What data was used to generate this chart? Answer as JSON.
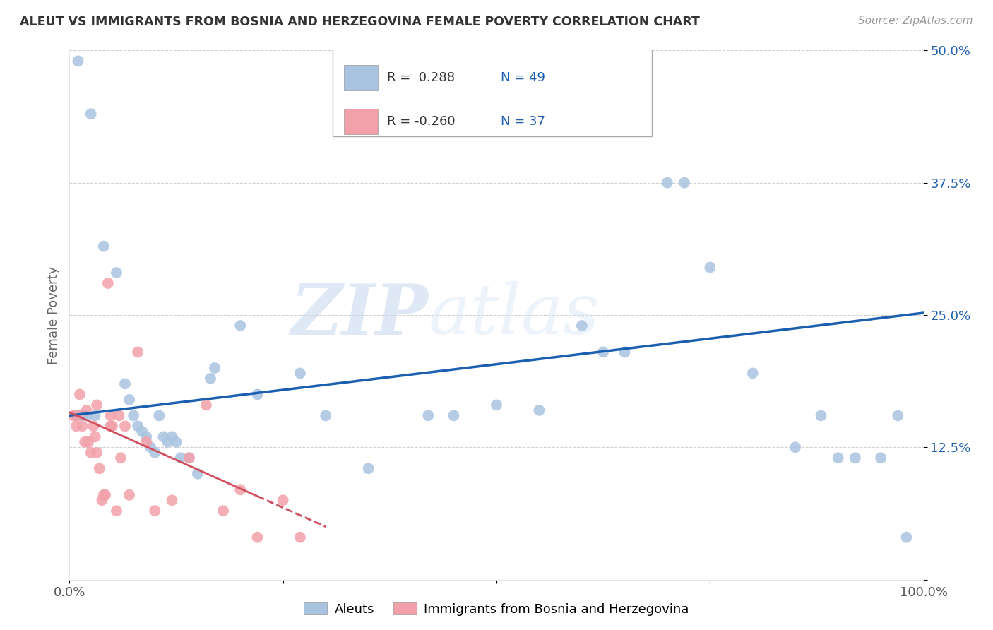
{
  "title": "ALEUT VS IMMIGRANTS FROM BOSNIA AND HERZEGOVINA FEMALE POVERTY CORRELATION CHART",
  "source": "Source: ZipAtlas.com",
  "ylabel": "Female Poverty",
  "xlim": [
    0,
    1.0
  ],
  "ylim": [
    0,
    0.5
  ],
  "yticks": [
    0.0,
    0.125,
    0.25,
    0.375,
    0.5
  ],
  "ytick_labels": [
    "",
    "12.5%",
    "25.0%",
    "37.5%",
    "50.0%"
  ],
  "xticks": [
    0.0,
    0.25,
    0.5,
    0.75,
    1.0
  ],
  "xtick_labels": [
    "0.0%",
    "",
    "",
    "",
    "100.0%"
  ],
  "blue_r": "0.288",
  "blue_n": "49",
  "pink_r": "-0.260",
  "pink_n": "37",
  "blue_color": "#a8c4e0",
  "pink_color": "#f2a0aa",
  "blue_line_color": "#1a5fb0",
  "pink_line_color": "#d05060",
  "watermark_zip": "ZIP",
  "watermark_atlas": "atlas",
  "legend_label_blue": "Aleuts",
  "legend_label_pink": "Immigrants from Bosnia and Herzegovina",
  "blue_scatter_x": [
    0.01,
    0.025,
    0.04,
    0.055,
    0.065,
    0.07,
    0.075,
    0.08,
    0.085,
    0.09,
    0.095,
    0.1,
    0.105,
    0.11,
    0.115,
    0.12,
    0.125,
    0.13,
    0.14,
    0.15,
    0.165,
    0.17,
    0.2,
    0.22,
    0.27,
    0.3,
    0.35,
    0.42,
    0.45,
    0.5,
    0.55,
    0.6,
    0.625,
    0.65,
    0.7,
    0.72,
    0.75,
    0.8,
    0.85,
    0.88,
    0.9,
    0.92,
    0.95,
    0.97,
    0.98,
    0.008,
    0.015,
    0.02,
    0.03
  ],
  "blue_scatter_y": [
    0.49,
    0.44,
    0.315,
    0.29,
    0.185,
    0.17,
    0.155,
    0.145,
    0.14,
    0.135,
    0.125,
    0.12,
    0.155,
    0.135,
    0.13,
    0.135,
    0.13,
    0.115,
    0.115,
    0.1,
    0.19,
    0.2,
    0.24,
    0.175,
    0.195,
    0.155,
    0.105,
    0.155,
    0.155,
    0.165,
    0.16,
    0.24,
    0.215,
    0.215,
    0.375,
    0.375,
    0.295,
    0.195,
    0.125,
    0.155,
    0.115,
    0.115,
    0.115,
    0.155,
    0.04,
    0.155,
    0.155,
    0.155,
    0.155
  ],
  "pink_scatter_x": [
    0.005,
    0.008,
    0.01,
    0.012,
    0.015,
    0.018,
    0.02,
    0.022,
    0.025,
    0.028,
    0.03,
    0.032,
    0.035,
    0.038,
    0.04,
    0.042,
    0.045,
    0.048,
    0.05,
    0.055,
    0.06,
    0.065,
    0.07,
    0.08,
    0.09,
    0.1,
    0.12,
    0.14,
    0.16,
    0.18,
    0.2,
    0.22,
    0.25,
    0.27,
    0.032,
    0.048,
    0.058
  ],
  "pink_scatter_y": [
    0.155,
    0.145,
    0.155,
    0.175,
    0.145,
    0.13,
    0.16,
    0.13,
    0.12,
    0.145,
    0.135,
    0.12,
    0.105,
    0.075,
    0.08,
    0.08,
    0.28,
    0.145,
    0.145,
    0.065,
    0.115,
    0.145,
    0.08,
    0.215,
    0.13,
    0.065,
    0.075,
    0.115,
    0.165,
    0.065,
    0.085,
    0.04,
    0.075,
    0.04,
    0.165,
    0.155,
    0.155
  ],
  "blue_line_x0": 0.0,
  "blue_line_x1": 1.0,
  "blue_line_y0": 0.155,
  "blue_line_y1": 0.252,
  "pink_line_x0": 0.0,
  "pink_line_x1": 0.3,
  "pink_line_y0": 0.158,
  "pink_line_y1": 0.05
}
